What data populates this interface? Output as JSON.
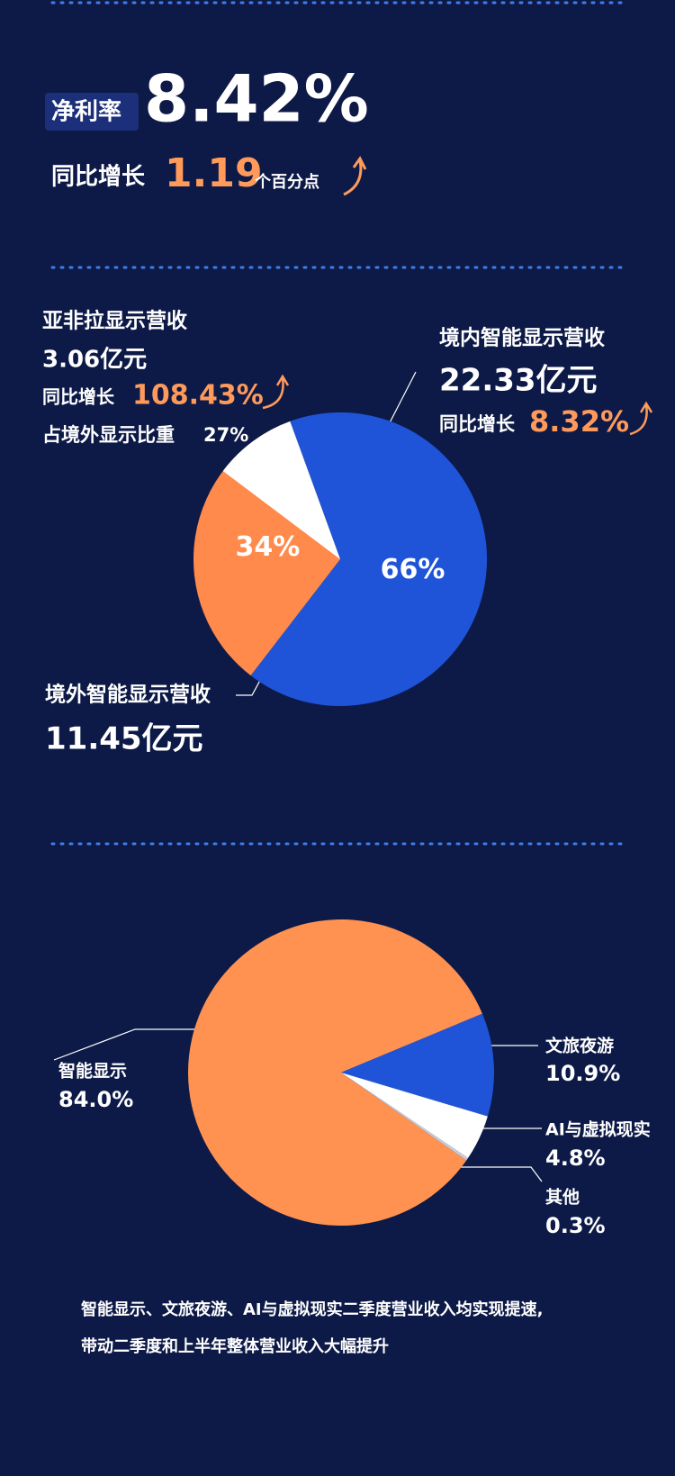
{
  "header": {
    "label": "净利率",
    "value": "8.42%",
    "growth_label": "同比增长",
    "growth_value": "1.19",
    "growth_unit": "个百分点"
  },
  "chart_data": [
    {
      "type": "pie",
      "categories": [
        "境内智能显示营收",
        "境外智能显示营收"
      ],
      "values": [
        66,
        34
      ],
      "value_labels": [
        "66%",
        "34%"
      ],
      "colors": [
        "#1f54d8",
        "#ff8a4c"
      ],
      "amounts": [
        "22.33亿元",
        "11.45亿元"
      ],
      "growth_label": "同比增长",
      "growth": "8.32%",
      "sub_slice": {
        "label": "亚非拉显示营收",
        "amount": "3.06亿元",
        "growth_label": "同比增长",
        "growth": "108.43%",
        "share_label": "占境外显示比重",
        "share": 27,
        "share_value_label": "27%",
        "color": "#ffffff"
      }
    },
    {
      "type": "pie",
      "categories": [
        "智能显示",
        "文旅夜游",
        "AI与虚拟现实",
        "其他"
      ],
      "values": [
        84.0,
        10.9,
        4.8,
        0.3
      ],
      "value_labels": [
        "84.0%",
        "10.9%",
        "4.8%",
        "0.3%"
      ],
      "colors": [
        "#ff9250",
        "#1f54d8",
        "#ffffff",
        "#c9ccd6"
      ]
    }
  ],
  "footer": [
    "智能显示、文旅夜游、AI与虚拟现实二季度营业收入均实现提速,",
    "带动二季度和上半年整体营业收入大幅提升"
  ]
}
